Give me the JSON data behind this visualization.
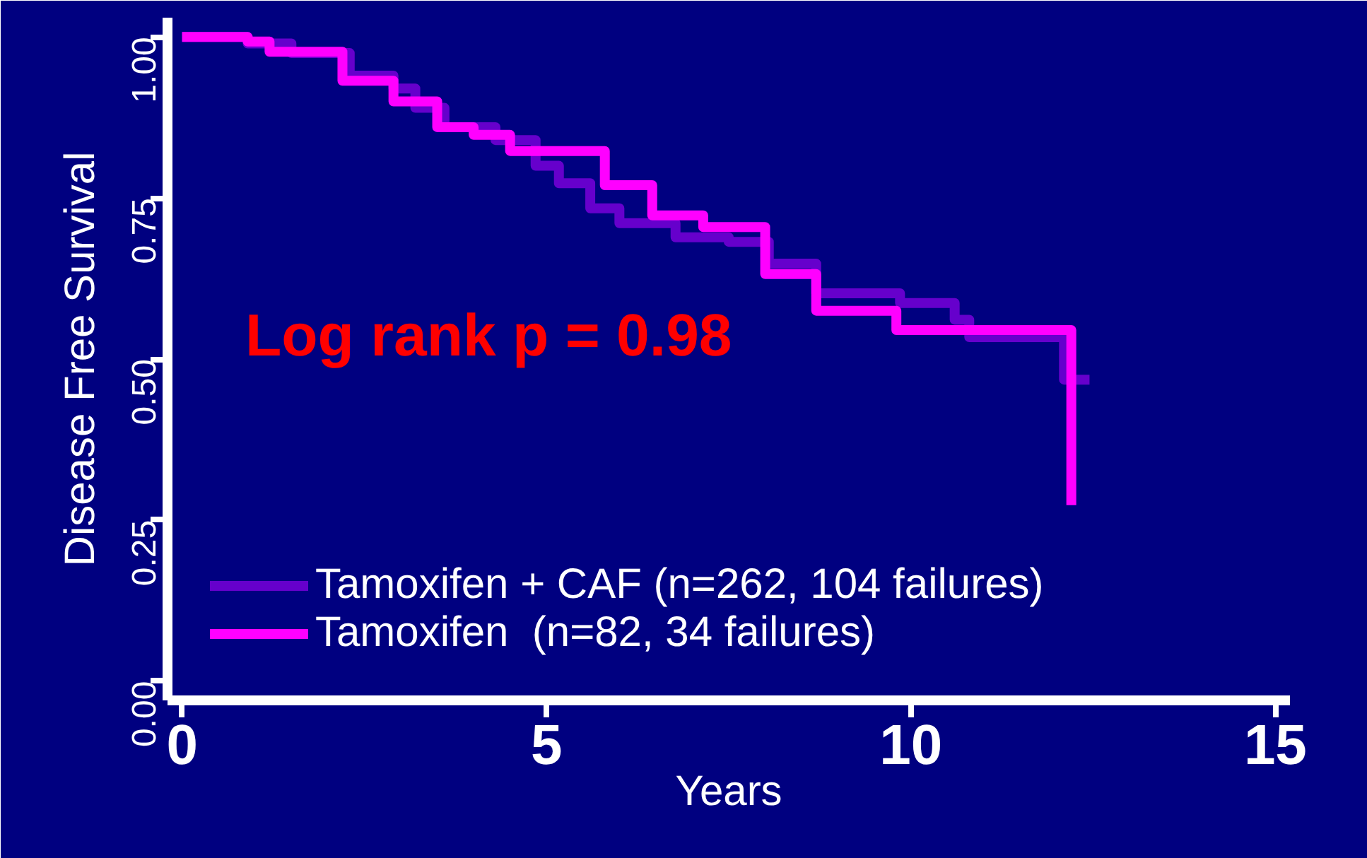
{
  "chart_data": {
    "type": "step",
    "xlabel": "Years",
    "ylabel": "Disease Free Survival",
    "annotations": [
      "Log rank p = 0.98"
    ],
    "xlim": [
      -0.2,
      15.2
    ],
    "ylim": [
      -0.03,
      1.03
    ],
    "xticks": [
      0,
      5,
      10,
      15
    ],
    "yticks": [
      {
        "value": 0,
        "label": "0.00"
      },
      {
        "value": 0.25,
        "label": "0.25"
      },
      {
        "value": 0.5,
        "label": "0.50"
      },
      {
        "value": 0.75,
        "label": "0.75"
      },
      {
        "value": 1,
        "label": "1.00"
      }
    ],
    "grid": false,
    "legend": "bottom left",
    "line_style": "solid",
    "marker": "none",
    "series": [
      {
        "name": "Tamoxifen + CAF (n=262, 104 failures)",
        "color": "#6600cc",
        "x": [
          0,
          0.9,
          1.5,
          2.3,
          2.9,
          3.2,
          3.6,
          4.3,
          4.85,
          5.17,
          5.6,
          6.0,
          6.77,
          7.5,
          8.05,
          8.7,
          9.85,
          10.6,
          10.8,
          12.1,
          12.45
        ],
        "values": [
          1.0,
          0.99,
          0.975,
          0.94,
          0.92,
          0.89,
          0.86,
          0.84,
          0.8,
          0.773,
          0.734,
          0.711,
          0.689,
          0.682,
          0.648,
          0.602,
          0.587,
          0.561,
          0.534,
          0.468,
          0.468
        ]
      },
      {
        "name": "Tamoxifen  (n=82, 34 failures)",
        "color": "#ff00ff",
        "x": [
          0,
          0.9,
          1.2,
          2.2,
          2.9,
          3.5,
          4.0,
          4.5,
          5.8,
          6.45,
          7.15,
          8.0,
          8.7,
          9.8,
          12.2
        ],
        "values": [
          1.0,
          0.993,
          0.977,
          0.932,
          0.9,
          0.86,
          0.848,
          0.823,
          0.77,
          0.723,
          0.705,
          0.632,
          0.575,
          0.545,
          0.273
        ]
      }
    ]
  }
}
